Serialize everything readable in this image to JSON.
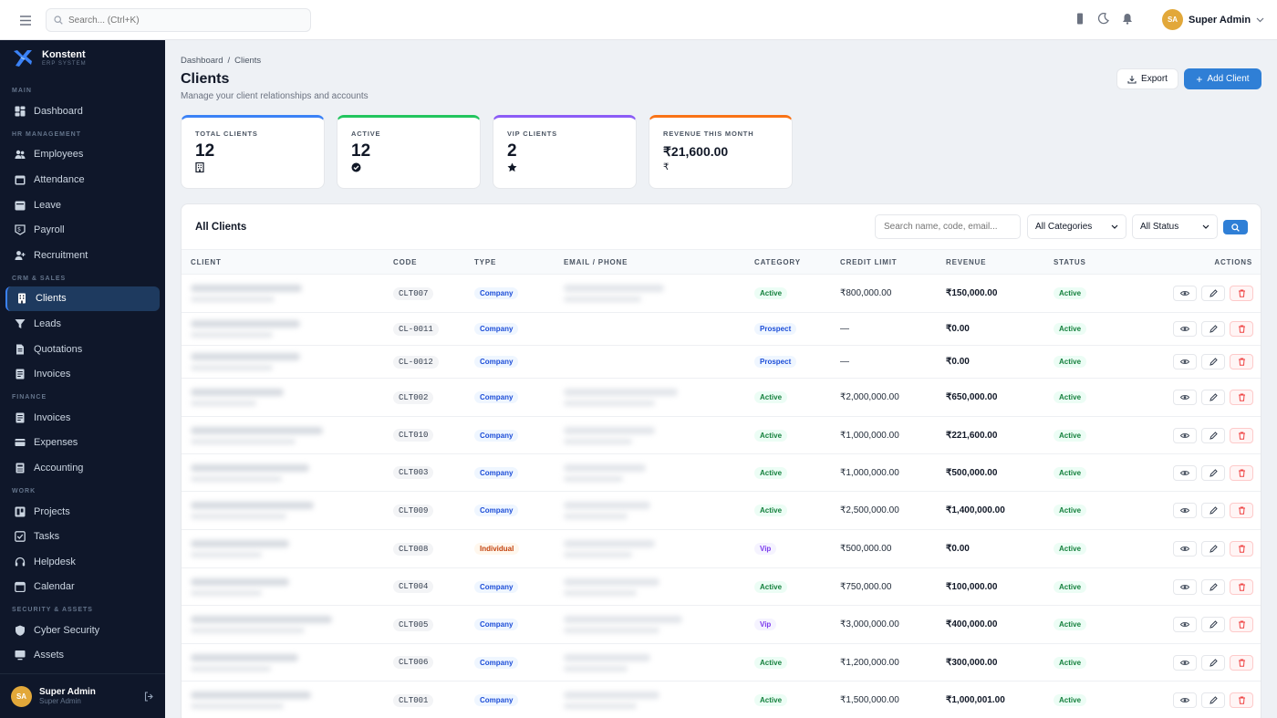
{
  "topbar": {
    "search_placeholder": "Search... (Ctrl+K)",
    "user_initials": "SA",
    "user_name": "Super Admin"
  },
  "brand": {
    "name": "Konstent",
    "sub": "ERP SYSTEM"
  },
  "sidebar": {
    "sections": [
      {
        "title": "MAIN",
        "items": [
          {
            "label": "Dashboard",
            "icon": "dashboard-icon"
          }
        ]
      },
      {
        "title": "HR MANAGEMENT",
        "items": [
          {
            "label": "Employees",
            "icon": "users-icon"
          },
          {
            "label": "Attendance",
            "icon": "calendar-check-icon"
          },
          {
            "label": "Leave",
            "icon": "leave-icon"
          },
          {
            "label": "Payroll",
            "icon": "payroll-icon"
          },
          {
            "label": "Recruitment",
            "icon": "user-plus-icon"
          }
        ]
      },
      {
        "title": "CRM & SALES",
        "items": [
          {
            "label": "Clients",
            "icon": "building-icon",
            "active": true
          },
          {
            "label": "Leads",
            "icon": "filter-icon"
          },
          {
            "label": "Quotations",
            "icon": "document-icon"
          },
          {
            "label": "Invoices",
            "icon": "invoice-icon"
          }
        ]
      },
      {
        "title": "FINANCE",
        "items": [
          {
            "label": "Invoices",
            "icon": "invoice-icon"
          },
          {
            "label": "Expenses",
            "icon": "card-icon"
          },
          {
            "label": "Accounting",
            "icon": "ledger-icon"
          }
        ]
      },
      {
        "title": "WORK",
        "items": [
          {
            "label": "Projects",
            "icon": "project-icon"
          },
          {
            "label": "Tasks",
            "icon": "checkbox-icon"
          },
          {
            "label": "Helpdesk",
            "icon": "headset-icon"
          },
          {
            "label": "Calendar",
            "icon": "calendar-icon"
          }
        ]
      },
      {
        "title": "SECURITY & ASSETS",
        "items": [
          {
            "label": "Cyber Security",
            "icon": "shield-icon"
          },
          {
            "label": "Assets",
            "icon": "monitor-icon"
          }
        ]
      }
    ],
    "user": {
      "initials": "SA",
      "name": "Super Admin",
      "role": "Super Admin"
    }
  },
  "page": {
    "breadcrumb": [
      "Dashboard",
      "/",
      "Clients"
    ],
    "title": "Clients",
    "subtitle": "Manage your client relationships and accounts",
    "export_label": "Export",
    "add_label": "Add Client"
  },
  "stats": [
    {
      "label": "TOTAL CLIENTS",
      "value": "12",
      "icon": "building-icon",
      "color": "#3b82f6"
    },
    {
      "label": "ACTIVE",
      "value": "12",
      "icon": "check-circle-icon",
      "color": "#22c55e"
    },
    {
      "label": "VIP CLIENTS",
      "value": "2",
      "icon": "star-icon",
      "color": "#8b5cf6"
    },
    {
      "label": "REVENUE THIS MONTH",
      "value": "₹21,600.00",
      "icon_text": "₹",
      "color": "#f97316"
    }
  ],
  "table": {
    "title": "All Clients",
    "search_placeholder": "Search name, code, email...",
    "category_filter": "All Categories",
    "status_filter": "All Status",
    "columns": [
      "CLIENT",
      "CODE",
      "TYPE",
      "EMAIL / PHONE",
      "CATEGORY",
      "CREDIT LIMIT",
      "REVENUE",
      "STATUS",
      "ACTIONS"
    ],
    "rows": [
      {
        "code": "CLT007",
        "type": "Company",
        "category": "Active",
        "credit": "₹800,000.00",
        "revenue": "₹150,000.00",
        "status": "Active"
      },
      {
        "code": "CL-0011",
        "type": "Company",
        "category": "Prospect",
        "credit": "—",
        "revenue": "₹0.00",
        "status": "Active"
      },
      {
        "code": "CL-0012",
        "type": "Company",
        "category": "Prospect",
        "credit": "—",
        "revenue": "₹0.00",
        "status": "Active"
      },
      {
        "code": "CLT002",
        "type": "Company",
        "category": "Active",
        "credit": "₹2,000,000.00",
        "revenue": "₹650,000.00",
        "status": "Active"
      },
      {
        "code": "CLT010",
        "type": "Company",
        "category": "Active",
        "credit": "₹1,000,000.00",
        "revenue": "₹221,600.00",
        "status": "Active"
      },
      {
        "code": "CLT003",
        "type": "Company",
        "category": "Active",
        "credit": "₹1,000,000.00",
        "revenue": "₹500,000.00",
        "status": "Active"
      },
      {
        "code": "CLT009",
        "type": "Company",
        "category": "Active",
        "credit": "₹2,500,000.00",
        "revenue": "₹1,400,000.00",
        "status": "Active"
      },
      {
        "code": "CLT008",
        "type": "Individual",
        "category": "Vip",
        "credit": "₹500,000.00",
        "revenue": "₹0.00",
        "status": "Active"
      },
      {
        "code": "CLT004",
        "type": "Company",
        "category": "Active",
        "credit": "₹750,000.00",
        "revenue": "₹100,000.00",
        "status": "Active"
      },
      {
        "code": "CLT005",
        "type": "Company",
        "category": "Vip",
        "credit": "₹3,000,000.00",
        "revenue": "₹400,000.00",
        "status": "Active"
      },
      {
        "code": "CLT006",
        "type": "Company",
        "category": "Active",
        "credit": "₹1,200,000.00",
        "revenue": "₹300,000.00",
        "status": "Active"
      },
      {
        "code": "CLT001",
        "type": "Company",
        "category": "Active",
        "credit": "₹1,500,000.00",
        "revenue": "₹1,000,001.00",
        "status": "Active"
      }
    ]
  }
}
